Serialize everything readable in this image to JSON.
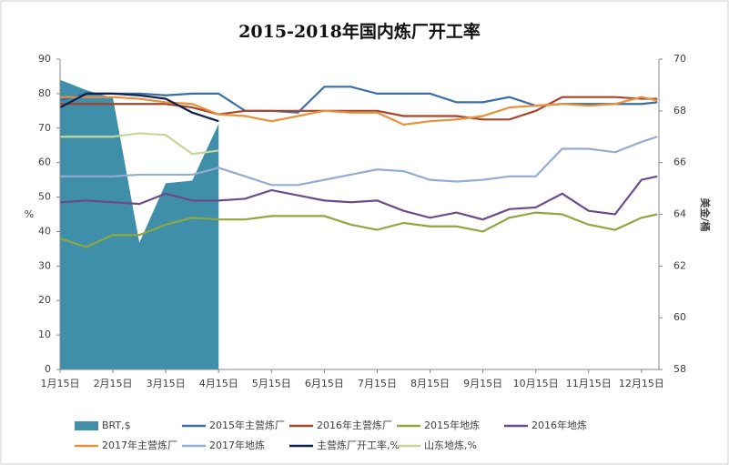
{
  "chart_data": {
    "type": "line",
    "title": "2015-2018年国内炼厂开工率",
    "ylabel": "%",
    "y2label": "美金/桶",
    "x": [
      1,
      1.5,
      2,
      2.5,
      3,
      3.5,
      4,
      4.5,
      5,
      5.5,
      6,
      6.5,
      7,
      7.5,
      8,
      8.5,
      9,
      9.5,
      10,
      10.5,
      11,
      11.5,
      12,
      12.3
    ],
    "xlim": [
      1,
      12.33
    ],
    "xticks": [
      {
        "value": 1,
        "label": "1月15日"
      },
      {
        "value": 2,
        "label": "2月15日"
      },
      {
        "value": 3,
        "label": "3月15日"
      },
      {
        "value": 4,
        "label": "4月15日"
      },
      {
        "value": 5,
        "label": "5月15日"
      },
      {
        "value": 6,
        "label": "6月15日"
      },
      {
        "value": 7,
        "label": "7月15日"
      },
      {
        "value": 8,
        "label": "8月15日"
      },
      {
        "value": 9,
        "label": "9月15日"
      },
      {
        "value": 10,
        "label": "10月15日"
      },
      {
        "value": 11,
        "label": "11月15日"
      },
      {
        "value": 12,
        "label": "12月15日"
      }
    ],
    "ylim": [
      0,
      90
    ],
    "yticks": [
      0,
      10,
      20,
      30,
      40,
      50,
      60,
      70,
      80,
      90
    ],
    "y2lim": [
      58,
      70
    ],
    "y2ticks": [
      58,
      60,
      62,
      64,
      66,
      68,
      70
    ],
    "grid": false,
    "legend": "bottom",
    "series": [
      {
        "name": "BRT,$",
        "type": "area",
        "axis": "y2",
        "color": "#3f8fab",
        "values": [
          69.2,
          68.8,
          68.5,
          62.9,
          65.2,
          65.3,
          67.5,
          null,
          null,
          null,
          null,
          null,
          null,
          null,
          null,
          null,
          null,
          null,
          null,
          null,
          null,
          null,
          null,
          null
        ]
      },
      {
        "name": "2015年主营炼厂",
        "color": "#3a6ea5",
        "values": [
          78,
          80,
          80,
          80,
          79.5,
          80,
          80,
          75,
          75,
          74.5,
          82,
          82,
          80,
          80,
          80,
          77.5,
          77.5,
          79,
          76.5,
          77,
          77,
          77,
          77,
          77.5
        ]
      },
      {
        "name": "2016年主营炼厂",
        "color": "#a6452e",
        "values": [
          77,
          77,
          77,
          77,
          77,
          76,
          74,
          75,
          75,
          75,
          75,
          75,
          75,
          73.5,
          73.5,
          73.5,
          72.5,
          72.5,
          75,
          79,
          79,
          79,
          78.5,
          78.5
        ]
      },
      {
        "name": "2015年地炼",
        "color": "#8ca83e",
        "values": [
          38,
          35.5,
          39,
          39,
          42,
          44,
          43.5,
          43.5,
          44.5,
          44.5,
          44.5,
          42,
          40.5,
          42.5,
          41.5,
          41.5,
          40,
          44,
          45.5,
          45,
          42,
          40.5,
          44,
          45
        ]
      },
      {
        "name": "2016年地炼",
        "color": "#6a4b8c",
        "values": [
          48.5,
          49,
          48.5,
          48,
          51,
          49,
          49,
          49.5,
          52,
          50.5,
          49,
          48.5,
          49,
          46,
          44,
          45.5,
          43.5,
          46.5,
          47,
          51,
          46,
          45,
          55,
          56
        ]
      },
      {
        "name": "2017年主营炼厂",
        "color": "#e8913a",
        "values": [
          79,
          79,
          79,
          78.5,
          77.5,
          77,
          74,
          73.5,
          72,
          73.5,
          75,
          74.5,
          74.5,
          71,
          72,
          72.5,
          73.5,
          76,
          76.5,
          77,
          76.5,
          77,
          79,
          78
        ]
      },
      {
        "name": "2017年地炼",
        "color": "#94acd2",
        "values": [
          56,
          56,
          56,
          56.5,
          56.5,
          56.5,
          58.5,
          56,
          53.5,
          53.5,
          55,
          56.5,
          58,
          57.5,
          55,
          54.5,
          55,
          56,
          56,
          64,
          64,
          63,
          66,
          67.5
        ]
      },
      {
        "name": "主营炼厂开工率,%",
        "color": "#0f1f4f",
        "values": [
          76,
          80,
          80,
          79.5,
          78.5,
          74.5,
          72,
          null,
          null,
          null,
          null,
          null,
          null,
          null,
          null,
          null,
          null,
          null,
          null,
          null,
          null,
          null,
          null,
          null
        ]
      },
      {
        "name": "山东地炼,%",
        "color": "#c4d79a",
        "values": [
          67.5,
          67.5,
          67.5,
          68.5,
          68,
          62.5,
          63.5,
          null,
          null,
          null,
          null,
          null,
          null,
          null,
          null,
          null,
          null,
          null,
          null,
          null,
          null,
          null,
          null,
          null
        ]
      }
    ]
  }
}
